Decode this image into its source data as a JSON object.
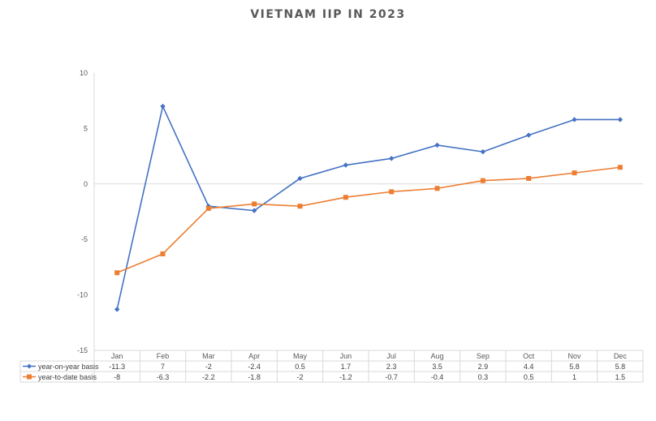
{
  "chart_data": {
    "type": "line",
    "title": "VIETNAM IIP IN 2023",
    "categories": [
      "Jan",
      "Feb",
      "Mar",
      "Apr",
      "May",
      "Jun",
      "Jul",
      "Aug",
      "Sep",
      "Oct",
      "Nov",
      "Dec"
    ],
    "series": [
      {
        "name": "year-on-year basis",
        "color": "#4472c4",
        "marker": "diamond",
        "values": [
          -11.3,
          7,
          -2,
          -2.4,
          0.5,
          1.7,
          2.3,
          3.5,
          2.9,
          4.4,
          5.8,
          5.8
        ]
      },
      {
        "name": "year-to-date basis",
        "color": "#ed7d31",
        "marker": "square",
        "values": [
          -8,
          -6.3,
          -2.2,
          -1.8,
          -2,
          -1.2,
          -0.7,
          -0.4,
          0.3,
          0.5,
          1,
          1.5
        ]
      }
    ],
    "ylim": [
      -15,
      10
    ],
    "yticks": [
      10,
      5,
      0,
      -5,
      -10,
      -15
    ],
    "grid": false,
    "legend": "data-table"
  }
}
